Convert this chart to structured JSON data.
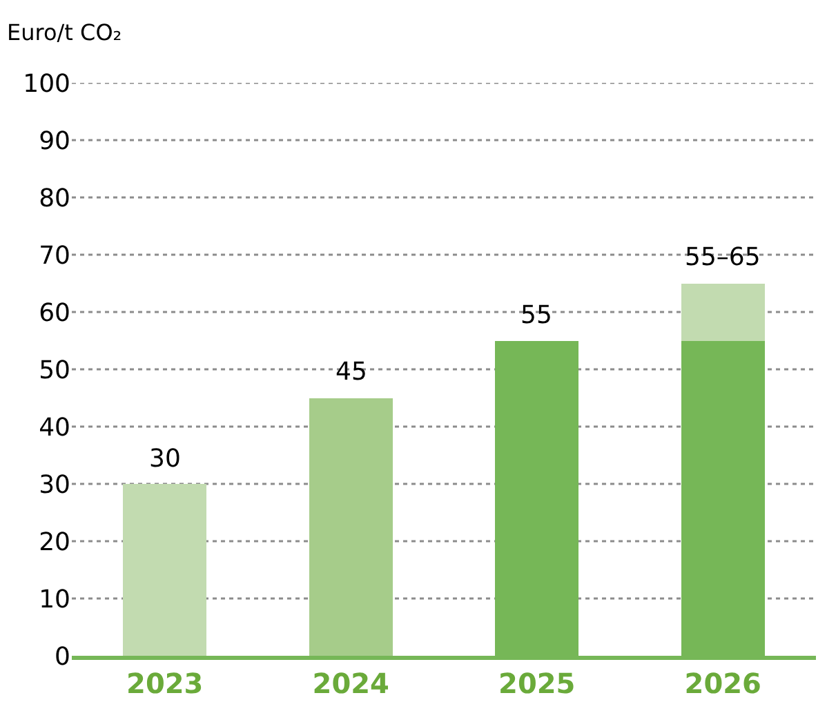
{
  "chart_data": {
    "type": "bar",
    "stacked": true,
    "ylabel": "Euro/t CO₂",
    "categories": [
      "2023",
      "2024",
      "2025",
      "2026"
    ],
    "series": [
      {
        "colors": [
          "#c2dbb0",
          "#a6cc8a",
          "#76b757",
          "#76b757"
        ],
        "values": [
          30,
          45,
          55,
          55
        ]
      },
      {
        "color": "#c2dbb0",
        "values": [
          null,
          null,
          null,
          10
        ]
      }
    ],
    "totals": [
      "30",
      "45",
      "55",
      "55–65"
    ],
    "ylim": [
      0,
      100
    ],
    "yticks": [
      0,
      10,
      20,
      30,
      40,
      50,
      60,
      70,
      80,
      90,
      100
    ],
    "grid": "y"
  }
}
